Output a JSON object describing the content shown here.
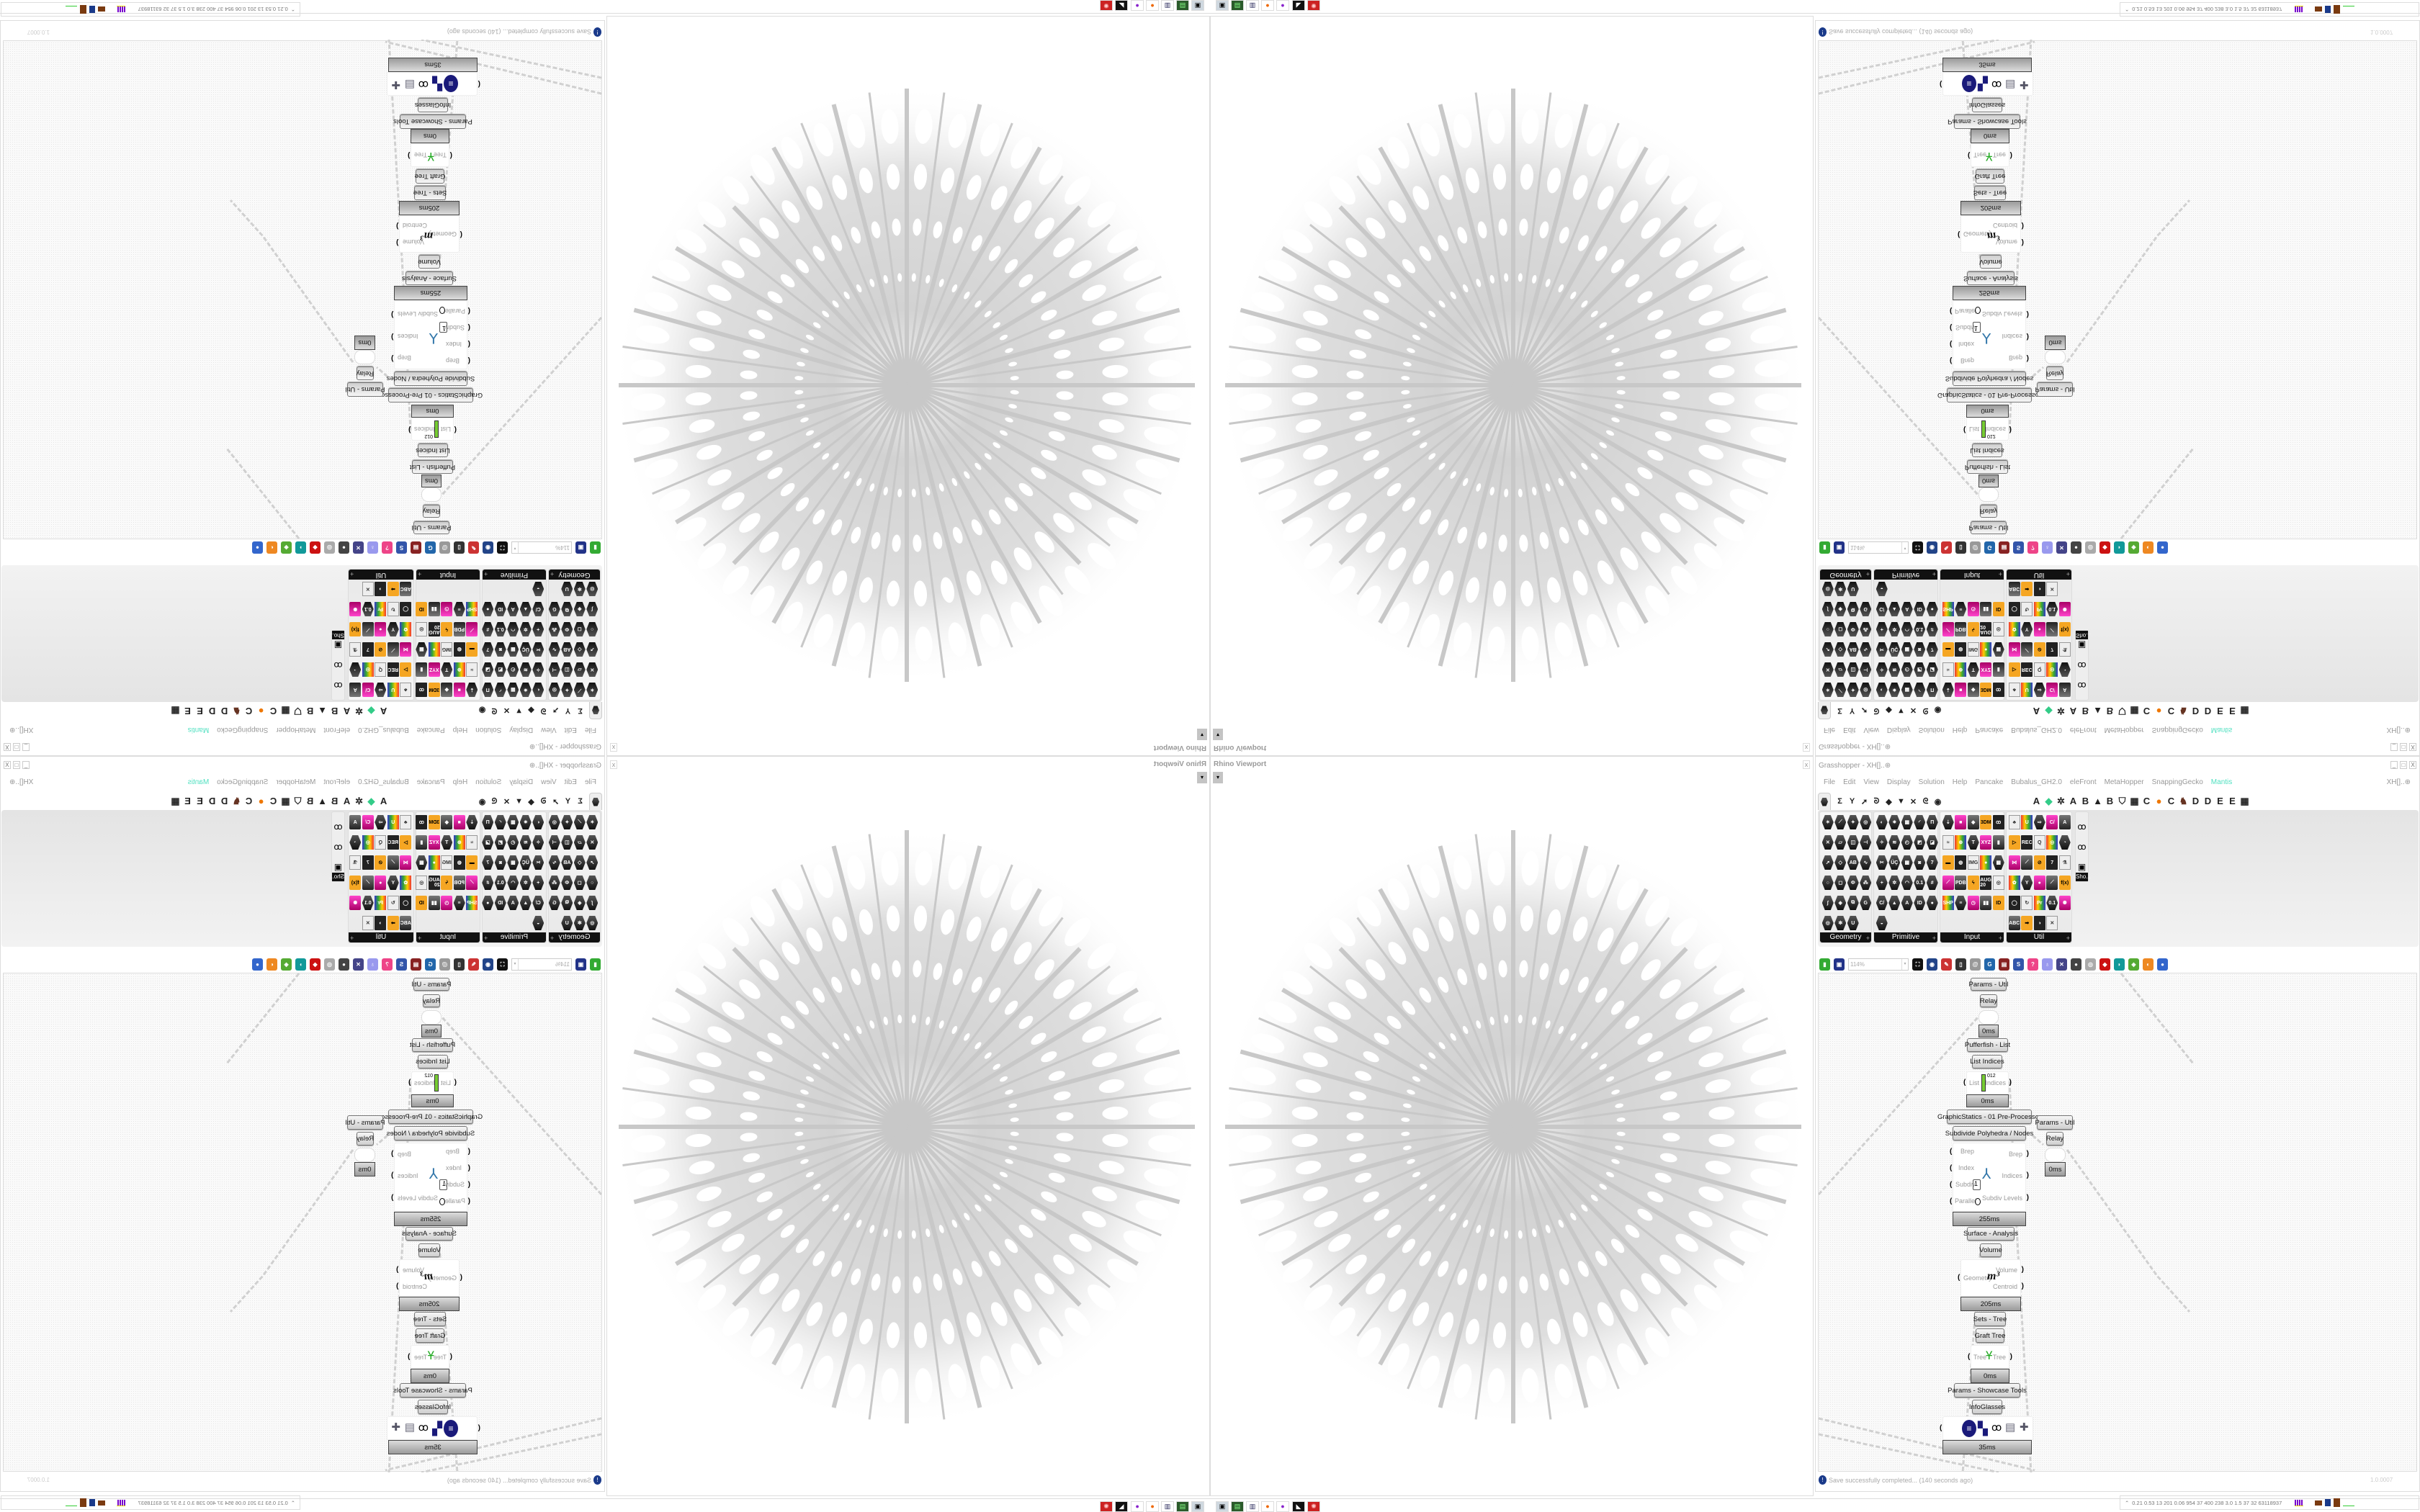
{
  "viewport": {
    "title": "Rhino Viewport",
    "close_label": "x",
    "dropdown_icon": "triangle-down"
  },
  "taskbar": {
    "icons": [
      "remote-desktop",
      "terminal-app",
      "floppy-64",
      "firefox",
      "purple-app",
      "black-white-app",
      "red-app"
    ],
    "stats": "0.21 0.53 13 201 0.06 954 37 400 238 3.0 1.5 37 32 63118937"
  },
  "grasshopper": {
    "title": "Grasshopper - XH[]..⊕",
    "doc_name": "XH[]..⊕",
    "window_buttons": [
      "_",
      "□",
      "X"
    ],
    "menu": [
      "File",
      "Edit",
      "View",
      "Display",
      "Solution",
      "Help",
      "Pancake",
      "Bubalus_GH2.0",
      "eleFront",
      "MetaHopper",
      "SnappingGecko",
      "Mantis"
    ],
    "active_menu": "Mantis",
    "accent_color": "#4fe0c0",
    "tabs": {
      "icons": [
        "Σ",
        "Y",
        "➚",
        "ᘐ",
        "◆",
        "▼",
        "✕",
        "ᘓ",
        "◉"
      ],
      "letters": [
        "A",
        "◆",
        "✲",
        "A",
        "B",
        "▲",
        "B",
        "⛉",
        "▦",
        "C",
        "●",
        "C",
        "♞",
        "D",
        "D",
        "E",
        "E",
        "▦"
      ]
    },
    "panels": [
      {
        "label": "Geometry",
        "icons": [
          "✶",
          "⟋",
          "✦",
          "◎",
          "✕",
          "▱",
          "◫",
          "⊣",
          "➚",
          "◇",
          "AB",
          "∿",
          "○",
          "◻",
          "Ф",
          "⁂",
          "∫",
          "◈",
          "⧉",
          "G",
          "◎",
          "✻",
          "U"
        ],
        "style": "hex"
      },
      {
        "label": "Primitive",
        "icons": [
          "◐",
          "✷",
          "▦",
          "◜",
          "П",
          "✧",
          "≋",
          "◴",
          "◩",
          "◪",
          "✂",
          "ÜÇ",
          "▩",
          "◙",
          "7",
          "+",
          "✲",
          "◠",
          "0.1",
          "#",
          "C/",
          "▲",
          "A",
          "ID",
          "●",
          "◒"
        ],
        "style": "hex"
      },
      {
        "label": "Input",
        "icons": [
          "⇣",
          "■",
          "◆",
          "3DM",
          "ꝏ",
          "≈",
          "⊕",
          "T",
          "XYZ",
          "▮",
          "▬",
          "◍",
          "IMG",
          "●",
          "▩",
          "⟋",
          "PDB",
          "ϟ",
          "AUG 20",
          "◎",
          "SHP",
          "≡",
          "◷",
          "▮▮",
          "ID"
        ],
        "style": "mixed"
      },
      {
        "label": "Util",
        "icons": [
          "♣",
          "U",
          "⇨",
          "C/",
          "A",
          "▷",
          "REC",
          "Q",
          "◎",
          "◔",
          "⋈",
          "⟋",
          "⊘",
          "7",
          "⚗",
          "✿",
          "Y",
          "●",
          "⟋",
          "f(x)",
          "◯",
          "↻",
          "Pr",
          "0.1",
          "✺",
          "ABC",
          "➡",
          "◑",
          "✕"
        ],
        "style": "mixed"
      }
    ],
    "show_panel_label": "Sho...",
    "toolbar": {
      "icons": [
        "new-file",
        "save-file",
        "zoom-extents",
        "preview-eye",
        "sketch-brush",
        "plugin",
        "at-sign",
        "gha",
        "dialog",
        "search-s",
        "package",
        "bulb",
        "cross-wires",
        "dark-sphere",
        "ring",
        "red-gem",
        "teal-shape",
        "green-shape",
        "orange-sphere",
        "blue-sphere"
      ],
      "zoom": "114%"
    },
    "canvas": {
      "labels": [
        "Params - Util",
        "Relay",
        "Pufferfish - List",
        "List Indices",
        "GraphicStatics - 01 Pre-Processor",
        "Subdivide Polyhedra / Nodes",
        "Params - Util",
        "Relay",
        "Surface - Analysis",
        "Volume",
        "Sets - Tree",
        "Graft Tree",
        "Params - Showcase Tools",
        "InfoGlasses"
      ],
      "timers": [
        "0ms",
        "0ms",
        "255ms",
        "0ms",
        "205ms",
        "0ms",
        "35ms"
      ],
      "list_indices": {
        "inputs": [
          "List"
        ],
        "outputs": [
          "Indices"
        ],
        "icon_text": "012"
      },
      "subdivide": {
        "inputs": [
          "Brep",
          "Index",
          "Subdiv",
          "Parallel"
        ],
        "subdiv_value": "1",
        "outputs": [
          "Brep",
          "Indices",
          "Subdiv Levels"
        ]
      },
      "volume": {
        "inputs": [
          "Geometry"
        ],
        "outputs": [
          "Volume",
          "Centroid"
        ],
        "icon_text": "m³"
      },
      "graft": {
        "inputs": [
          "Tree"
        ],
        "outputs": [
          "Tree"
        ]
      },
      "infoglasses_icons": [
        "list-circle",
        "grid-four",
        "glasses",
        "cabinet",
        "puzzle"
      ]
    },
    "status": {
      "message": "Save successfully completed... (140 seconds ago)",
      "version": "1.0.0007",
      "icon": "info"
    }
  }
}
